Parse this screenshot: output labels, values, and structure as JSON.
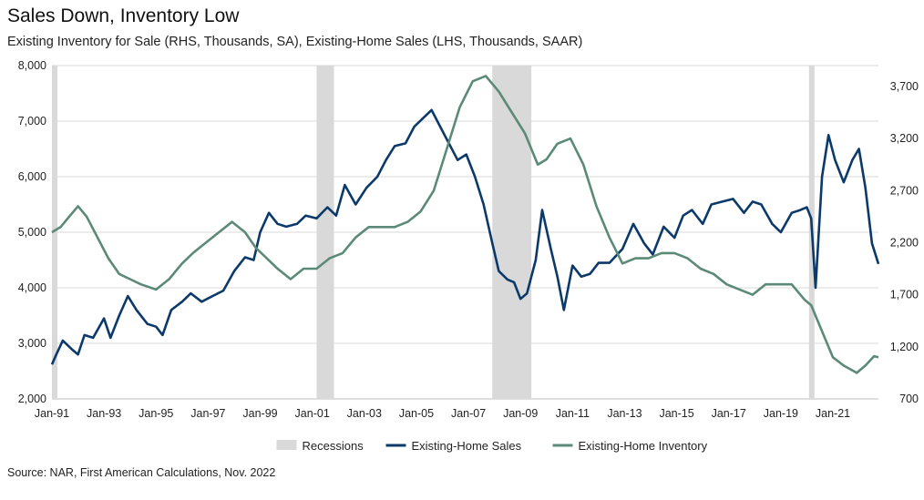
{
  "chart_data": {
    "type": "line",
    "title": "Sales Down, Inventory Low",
    "subtitle": "Existing  Inventory for Sale (RHS, Thousands, SA), Existing-Home  Sales (LHS, Thousands, SAAR)",
    "source": "Source: NAR, First American Calculations, Nov. 2022",
    "x_range": [
      "1991-01",
      "2022-10"
    ],
    "x_tick_labels": [
      "Jan-91",
      "Jan-93",
      "Jan-95",
      "Jan-97",
      "Jan-99",
      "Jan-01",
      "Jan-03",
      "Jan-05",
      "Jan-07",
      "Jan-09",
      "Jan-11",
      "Jan-13",
      "Jan-15",
      "Jan-17",
      "Jan-19",
      "Jan-21"
    ],
    "y_left": {
      "range": [
        2000,
        8000
      ],
      "ticks": [
        "2,000",
        "3,000",
        "4,000",
        "5,000",
        "6,000",
        "7,000",
        "8,000"
      ]
    },
    "y_right": {
      "range": [
        700,
        3900
      ],
      "ticks": [
        "700",
        "1,200",
        "1,700",
        "2,200",
        "2,700",
        "3,200",
        "3,700"
      ]
    },
    "grid": true,
    "legend_position": "bottom",
    "legend": [
      {
        "label": "Recessions",
        "color": "#d9d9d9"
      },
      {
        "label": "Existing-Home Sales",
        "color": "#0b3a6a"
      },
      {
        "label": "Existing-Home Inventory",
        "color": "#5b8a76"
      }
    ],
    "recessions": [
      {
        "start": "1991-01",
        "end": "1991-03"
      },
      {
        "start": "2001-03",
        "end": "2001-11"
      },
      {
        "start": "2007-12",
        "end": "2009-06"
      },
      {
        "start": "2020-02",
        "end": "2020-04"
      }
    ],
    "series": [
      {
        "name": "Existing-Home Sales",
        "axis": "left",
        "color": "#0b3a6a",
        "points": [
          [
            "1991-01",
            2620
          ],
          [
            "1991-03",
            2800
          ],
          [
            "1991-06",
            3050
          ],
          [
            "1991-10",
            2900
          ],
          [
            "1992-01",
            2800
          ],
          [
            "1992-04",
            3150
          ],
          [
            "1992-08",
            3100
          ],
          [
            "1993-01",
            3450
          ],
          [
            "1993-04",
            3100
          ],
          [
            "1993-08",
            3500
          ],
          [
            "1993-12",
            3850
          ],
          [
            "1994-04",
            3600
          ],
          [
            "1994-09",
            3350
          ],
          [
            "1995-01",
            3300
          ],
          [
            "1995-04",
            3150
          ],
          [
            "1995-08",
            3600
          ],
          [
            "1996-01",
            3750
          ],
          [
            "1996-05",
            3900
          ],
          [
            "1996-10",
            3750
          ],
          [
            "1997-03",
            3850
          ],
          [
            "1997-08",
            3950
          ],
          [
            "1998-01",
            4300
          ],
          [
            "1998-06",
            4550
          ],
          [
            "1998-10",
            4500
          ],
          [
            "1999-01",
            5000
          ],
          [
            "1999-05",
            5350
          ],
          [
            "1999-09",
            5150
          ],
          [
            "2000-01",
            5100
          ],
          [
            "2000-06",
            5150
          ],
          [
            "2000-10",
            5300
          ],
          [
            "2001-03",
            5250
          ],
          [
            "2001-08",
            5450
          ],
          [
            "2001-12",
            5300
          ],
          [
            "2002-04",
            5850
          ],
          [
            "2002-09",
            5500
          ],
          [
            "2003-02",
            5800
          ],
          [
            "2003-07",
            6000
          ],
          [
            "2003-11",
            6300
          ],
          [
            "2004-03",
            6550
          ],
          [
            "2004-08",
            6600
          ],
          [
            "2004-12",
            6900
          ],
          [
            "2005-04",
            7050
          ],
          [
            "2005-08",
            7200
          ],
          [
            "2005-12",
            6900
          ],
          [
            "2006-04",
            6600
          ],
          [
            "2006-08",
            6300
          ],
          [
            "2006-12",
            6400
          ],
          [
            "2007-04",
            6000
          ],
          [
            "2007-08",
            5500
          ],
          [
            "2007-12",
            4800
          ],
          [
            "2008-03",
            4300
          ],
          [
            "2008-07",
            4150
          ],
          [
            "2008-10",
            4100
          ],
          [
            "2009-01",
            3800
          ],
          [
            "2009-04",
            3900
          ],
          [
            "2009-08",
            4500
          ],
          [
            "2009-11",
            5400
          ],
          [
            "2010-03",
            4700
          ],
          [
            "2010-06",
            4200
          ],
          [
            "2010-09",
            3600
          ],
          [
            "2011-01",
            4400
          ],
          [
            "2011-05",
            4200
          ],
          [
            "2011-09",
            4250
          ],
          [
            "2012-01",
            4450
          ],
          [
            "2012-06",
            4450
          ],
          [
            "2012-12",
            4700
          ],
          [
            "2013-05",
            5150
          ],
          [
            "2013-10",
            4800
          ],
          [
            "2014-02",
            4600
          ],
          [
            "2014-07",
            5100
          ],
          [
            "2014-12",
            4900
          ],
          [
            "2015-04",
            5300
          ],
          [
            "2015-08",
            5400
          ],
          [
            "2016-01",
            5150
          ],
          [
            "2016-05",
            5500
          ],
          [
            "2016-10",
            5550
          ],
          [
            "2017-03",
            5600
          ],
          [
            "2017-08",
            5350
          ],
          [
            "2017-12",
            5550
          ],
          [
            "2018-04",
            5500
          ],
          [
            "2018-09",
            5150
          ],
          [
            "2019-01",
            5000
          ],
          [
            "2019-06",
            5350
          ],
          [
            "2019-10",
            5400
          ],
          [
            "2020-01",
            5450
          ],
          [
            "2020-03",
            5250
          ],
          [
            "2020-05",
            4000
          ],
          [
            "2020-08",
            6000
          ],
          [
            "2020-11",
            6750
          ],
          [
            "2021-02",
            6300
          ],
          [
            "2021-06",
            5900
          ],
          [
            "2021-10",
            6300
          ],
          [
            "2022-01",
            6500
          ],
          [
            "2022-04",
            5800
          ],
          [
            "2022-07",
            4800
          ],
          [
            "2022-10",
            4430
          ]
        ]
      },
      {
        "name": "Existing-Home Inventory",
        "axis": "right",
        "color": "#5b8a76",
        "points": [
          [
            "1991-01",
            2300
          ],
          [
            "1991-05",
            2350
          ],
          [
            "1991-09",
            2450
          ],
          [
            "1992-01",
            2550
          ],
          [
            "1992-05",
            2450
          ],
          [
            "1992-10",
            2250
          ],
          [
            "1993-03",
            2050
          ],
          [
            "1993-08",
            1900
          ],
          [
            "1994-01",
            1850
          ],
          [
            "1994-06",
            1800
          ],
          [
            "1995-01",
            1750
          ],
          [
            "1995-07",
            1850
          ],
          [
            "1996-01",
            2000
          ],
          [
            "1996-06",
            2100
          ],
          [
            "1996-12",
            2200
          ],
          [
            "1997-06",
            2300
          ],
          [
            "1997-12",
            2400
          ],
          [
            "1998-06",
            2300
          ],
          [
            "1998-11",
            2150
          ],
          [
            "1999-04",
            2050
          ],
          [
            "1999-09",
            1950
          ],
          [
            "2000-03",
            1850
          ],
          [
            "2000-09",
            1950
          ],
          [
            "2001-03",
            1950
          ],
          [
            "2001-09",
            2050
          ],
          [
            "2002-03",
            2100
          ],
          [
            "2002-09",
            2250
          ],
          [
            "2003-03",
            2350
          ],
          [
            "2003-09",
            2350
          ],
          [
            "2004-03",
            2350
          ],
          [
            "2004-09",
            2400
          ],
          [
            "2005-03",
            2500
          ],
          [
            "2005-09",
            2700
          ],
          [
            "2006-03",
            3100
          ],
          [
            "2006-09",
            3500
          ],
          [
            "2007-03",
            3750
          ],
          [
            "2007-09",
            3800
          ],
          [
            "2008-03",
            3650
          ],
          [
            "2008-09",
            3450
          ],
          [
            "2009-03",
            3250
          ],
          [
            "2009-09",
            2950
          ],
          [
            "2010-01",
            3000
          ],
          [
            "2010-06",
            3150
          ],
          [
            "2010-12",
            3200
          ],
          [
            "2011-06",
            2950
          ],
          [
            "2011-12",
            2550
          ],
          [
            "2012-06",
            2250
          ],
          [
            "2012-12",
            2000
          ],
          [
            "2013-06",
            2050
          ],
          [
            "2013-12",
            2050
          ],
          [
            "2014-06",
            2100
          ],
          [
            "2014-12",
            2100
          ],
          [
            "2015-06",
            2050
          ],
          [
            "2015-12",
            1950
          ],
          [
            "2016-06",
            1900
          ],
          [
            "2016-12",
            1800
          ],
          [
            "2017-06",
            1750
          ],
          [
            "2017-12",
            1700
          ],
          [
            "2018-06",
            1800
          ],
          [
            "2018-12",
            1800
          ],
          [
            "2019-06",
            1800
          ],
          [
            "2019-12",
            1650
          ],
          [
            "2020-03",
            1600
          ],
          [
            "2020-08",
            1350
          ],
          [
            "2021-01",
            1100
          ],
          [
            "2021-06",
            1020
          ],
          [
            "2021-12",
            950
          ],
          [
            "2022-04",
            1020
          ],
          [
            "2022-08",
            1110
          ],
          [
            "2022-10",
            1100
          ]
        ]
      }
    ]
  }
}
